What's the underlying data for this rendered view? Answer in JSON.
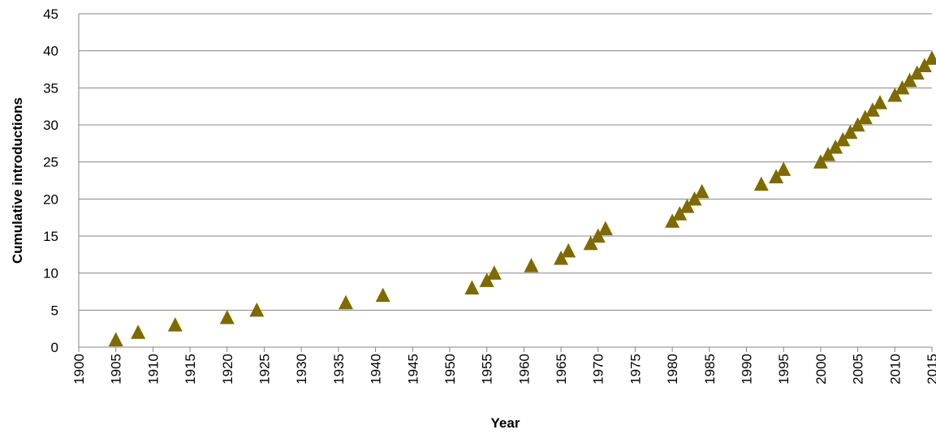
{
  "chart_data": {
    "type": "scatter",
    "xlabel": "Year",
    "ylabel": "Cumulative introductions",
    "xlim": [
      1900,
      2015
    ],
    "ylim": [
      0,
      45
    ],
    "x_ticks": [
      1900,
      1905,
      1910,
      1915,
      1920,
      1925,
      1930,
      1935,
      1940,
      1945,
      1950,
      1955,
      1960,
      1965,
      1970,
      1975,
      1980,
      1985,
      1990,
      1995,
      2000,
      2005,
      2010,
      2015
    ],
    "y_ticks": [
      0,
      5,
      10,
      15,
      20,
      25,
      30,
      35,
      40,
      45
    ],
    "grid": "horizontal",
    "marker": "triangle",
    "marker_color": "#7f6a00",
    "series": [
      {
        "x": [
          1905,
          1908,
          1913,
          1920,
          1924,
          1936,
          1941,
          1953,
          1955,
          1956,
          1961,
          1965,
          1966,
          1969,
          1970,
          1971,
          1980,
          1981,
          1982,
          1983,
          1984,
          1992,
          1994,
          1995,
          2000,
          2001,
          2002,
          2003,
          2004,
          2005,
          2006,
          2007,
          2008,
          2010,
          2011,
          2012,
          2013,
          2014,
          2015
        ],
        "y": [
          1,
          2,
          3,
          4,
          5,
          6,
          7,
          8,
          9,
          10,
          11,
          12,
          13,
          14,
          15,
          16,
          17,
          18,
          19,
          20,
          21,
          22,
          23,
          24,
          25,
          26,
          27,
          28,
          29,
          30,
          31,
          32,
          33,
          34,
          35,
          36,
          37,
          38,
          39
        ]
      }
    ]
  }
}
